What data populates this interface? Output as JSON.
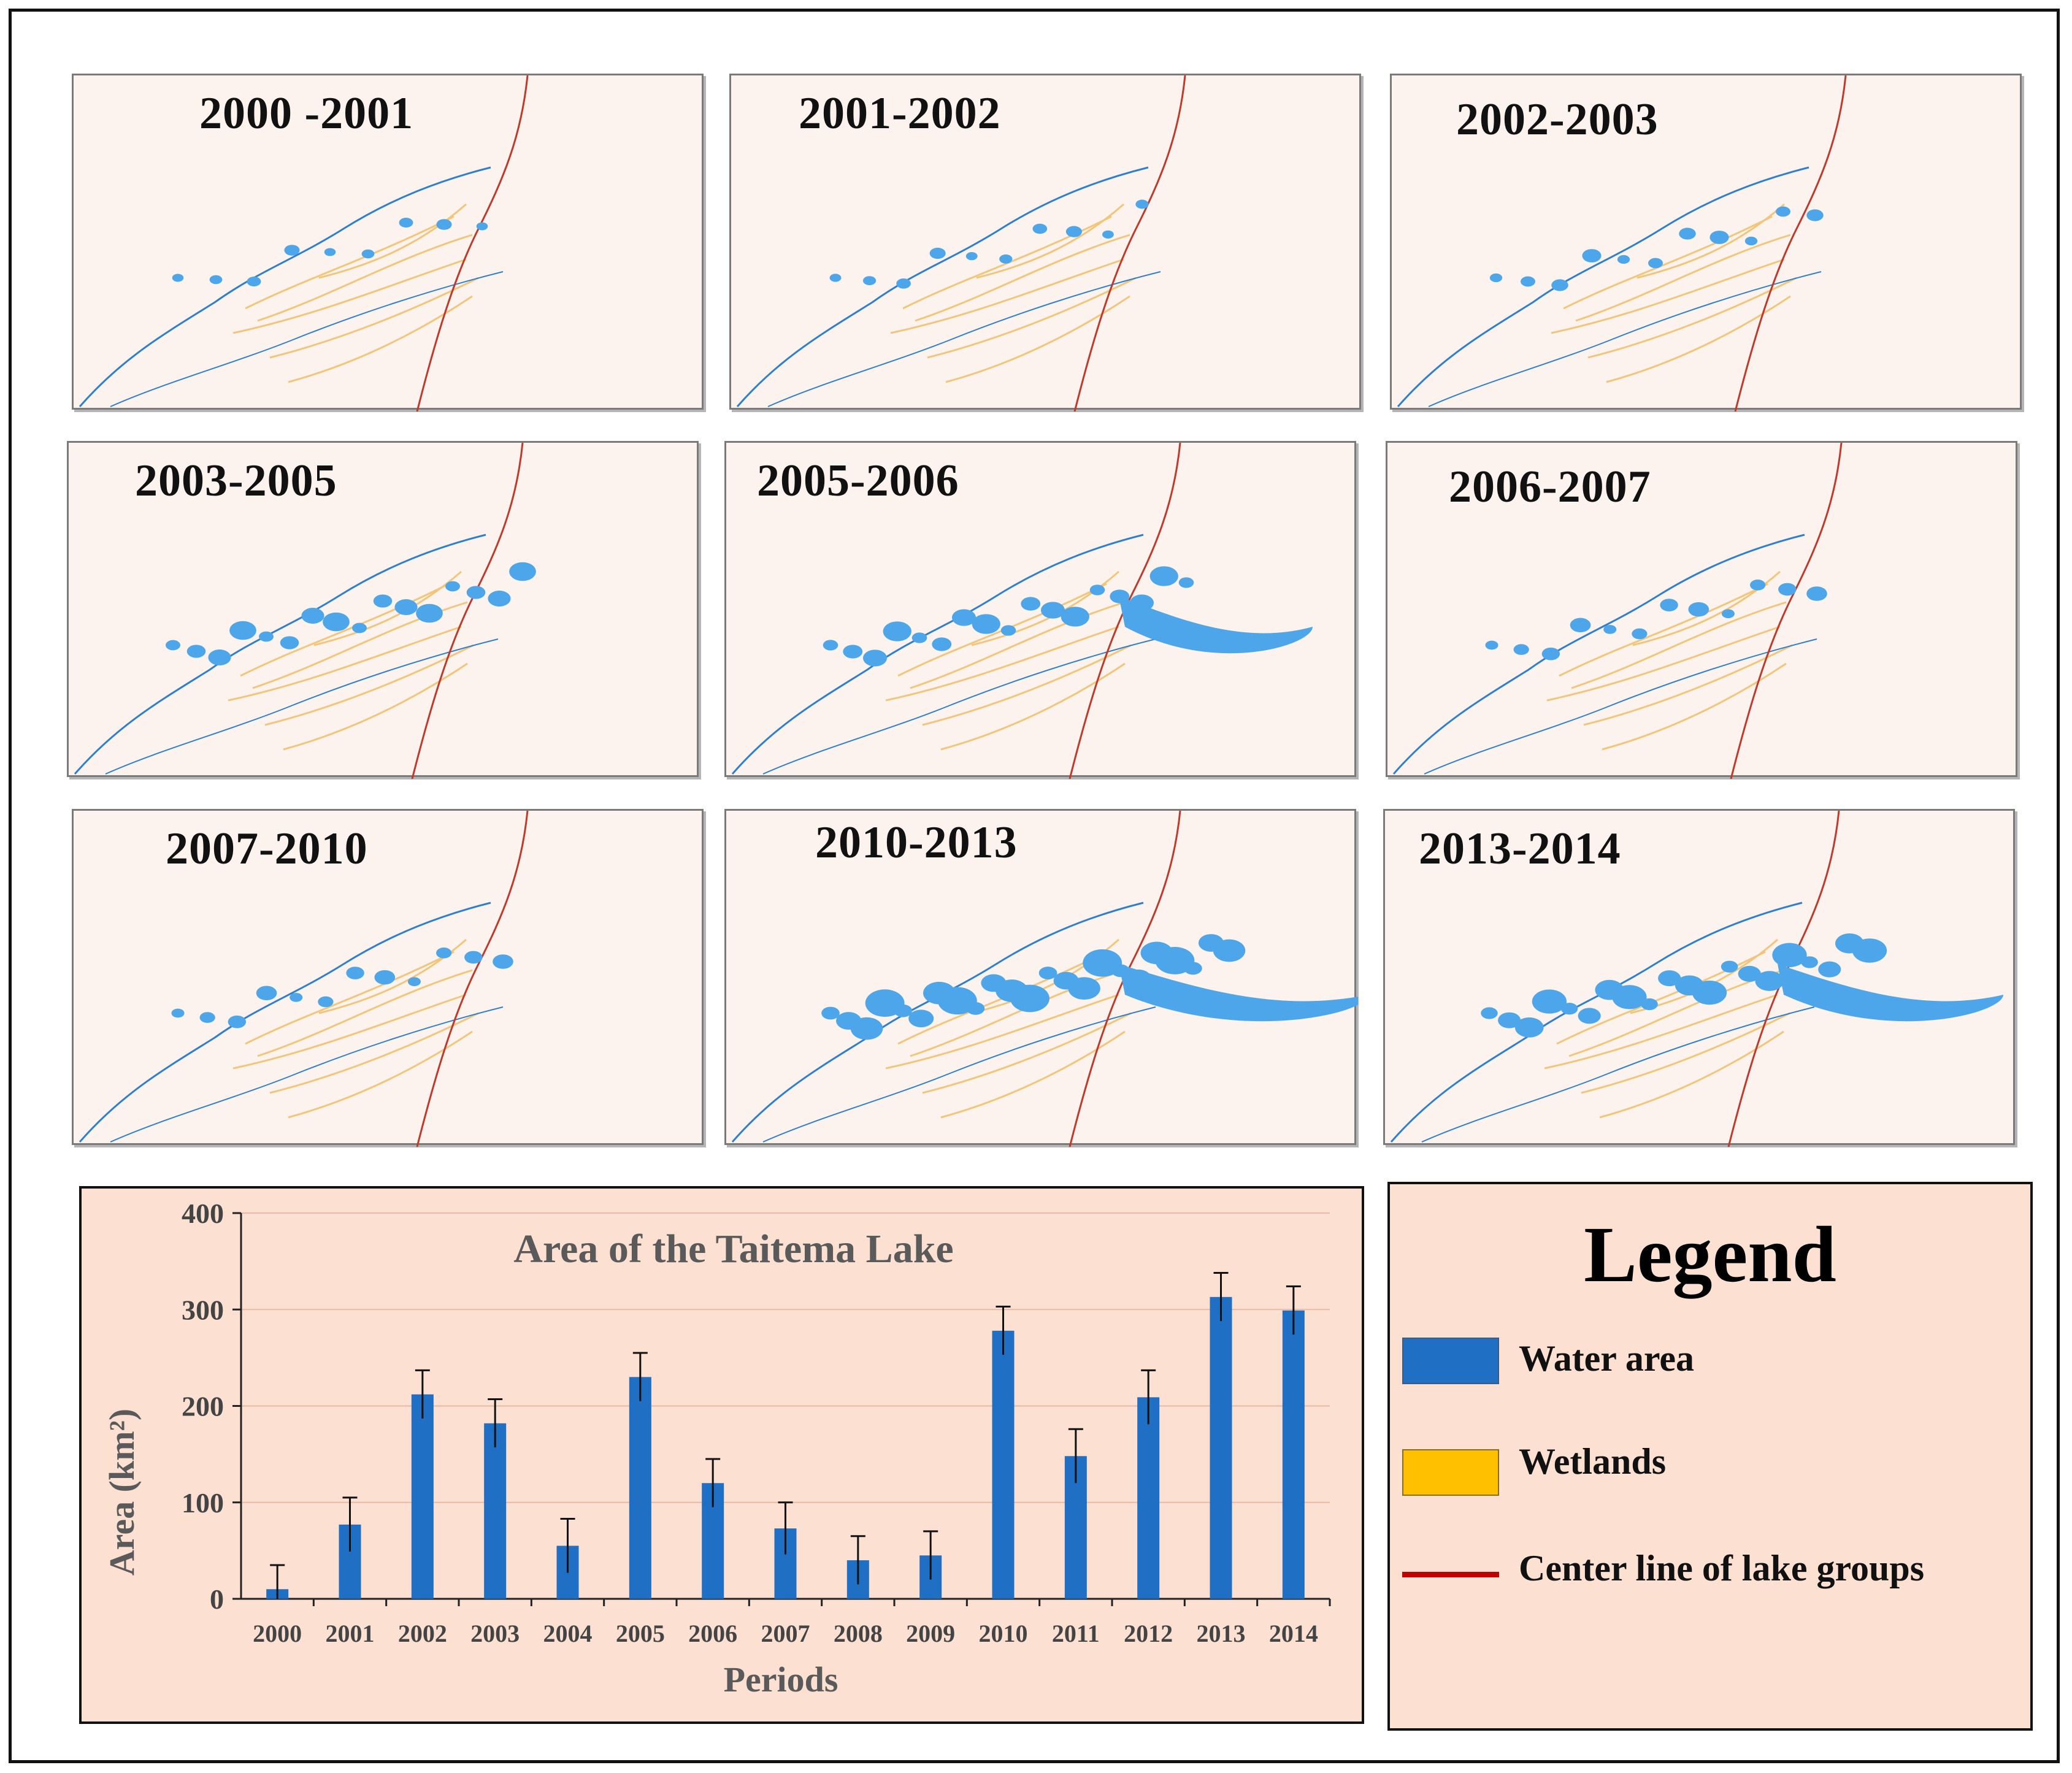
{
  "colors": {
    "water": "#4da6ea",
    "water_dark": "#2f7fcf",
    "wetland": "#f2c67a",
    "center_line": "#c0392b",
    "bar": "#1f6fc5",
    "panel_bg": "#fcf3ee",
    "chart_bg": "#fce0d2"
  },
  "maps": [
    {
      "label": "2000 -2001",
      "intensity": 0.18,
      "lobe": false
    },
    {
      "label": "2001-2002",
      "intensity": 0.2,
      "lobe": false
    },
    {
      "label": "2002-2003",
      "intensity": 0.3,
      "lobe": false
    },
    {
      "label": "2003-2005",
      "intensity": 0.55,
      "lobe": false
    },
    {
      "label": "2005-2006",
      "intensity": 0.6,
      "lobe": true
    },
    {
      "label": "2006-2007",
      "intensity": 0.35,
      "lobe": false
    },
    {
      "label": "2007-2010",
      "intensity": 0.35,
      "lobe": false
    },
    {
      "label": "2010-2013",
      "intensity": 0.95,
      "lobe": true
    },
    {
      "label": "2013-2014",
      "intensity": 0.8,
      "lobe": true
    }
  ],
  "chart_data": {
    "type": "bar",
    "title": "Area of the Taitema Lake",
    "xlabel": "Periods",
    "ylabel": "Area (km²)",
    "ylim": [
      0,
      400
    ],
    "yticks": [
      0,
      100,
      200,
      300,
      400
    ],
    "grid": true,
    "categories": [
      "2000",
      "2001",
      "2002",
      "2003",
      "2004",
      "2005",
      "2006",
      "2007",
      "2008",
      "2009",
      "2010",
      "2011",
      "2012",
      "2013",
      "2014"
    ],
    "values": [
      10,
      77,
      212,
      182,
      55,
      230,
      120,
      73,
      40,
      45,
      278,
      148,
      209,
      313,
      299
    ],
    "error": [
      25,
      28,
      25,
      25,
      28,
      25,
      25,
      27,
      25,
      25,
      25,
      28,
      28,
      25,
      25
    ]
  },
  "legend": {
    "title": "Legend",
    "items": [
      {
        "kind": "swatch",
        "label": "Water area",
        "color": "#1f6fc5"
      },
      {
        "kind": "swatch",
        "label": "Wetlands",
        "color": "#ffc000"
      },
      {
        "kind": "line",
        "label": "Center line of lake groups",
        "color": "#c00000"
      }
    ]
  }
}
